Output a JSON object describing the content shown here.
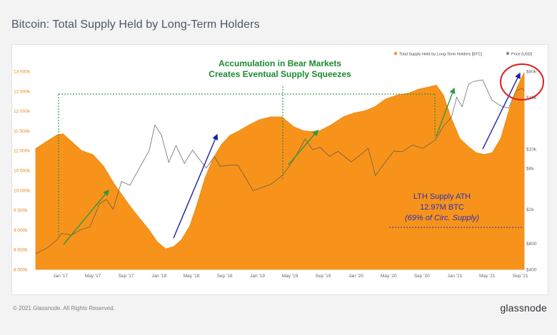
{
  "title": "Bitcoin: Total Supply Held by Long-Term Holders",
  "footer": {
    "copyright": "© 2021 Glassnode. All Rights Reserved.",
    "logo": "glassnode"
  },
  "chart_data": {
    "type": "area",
    "watermark": "glassnode",
    "legend": {
      "placement": "top-right",
      "items": [
        {
          "label": "Total Supply Held by Long-Term Holders [BTC]",
          "color": "#f7931a"
        },
        {
          "label": "Price [USD]",
          "color": "#8a8a8a"
        }
      ]
    },
    "x_ticks": [
      "Jan '17",
      "May '17",
      "Sep '17",
      "Jan '18",
      "May '18",
      "Sep '18",
      "Jan '19",
      "May '19",
      "Sep '19",
      "Jan '20",
      "May '20",
      "Sep '20",
      "Jan '21",
      "May '21",
      "Sep '21"
    ],
    "y_left": {
      "min": 8000000,
      "max": 13000000,
      "ticks": [
        {
          "v": 13000000,
          "label": "13 000k"
        },
        {
          "v": 12500000,
          "label": "12 500k"
        },
        {
          "v": 12000000,
          "label": "12 000k"
        },
        {
          "v": 11500000,
          "label": "11 500k"
        },
        {
          "v": 11000000,
          "label": "11 000k"
        },
        {
          "v": 10500000,
          "label": "10 500k"
        },
        {
          "v": 10000000,
          "label": "10 000k"
        },
        {
          "v": 9500000,
          "label": "9 500k"
        },
        {
          "v": 9000000,
          "label": "9 000k"
        },
        {
          "v": 8500000,
          "label": "8 500k"
        },
        {
          "v": 8000000,
          "label": "8 000k"
        }
      ]
    },
    "y_right": {
      "scale": "log",
      "min": 400,
      "max": 80000,
      "ticks": [
        {
          "v": 80000,
          "label": "$80k"
        },
        {
          "v": 40000,
          "label": "$40k"
        },
        {
          "v": 10000,
          "label": "$10k"
        },
        {
          "v": 6000,
          "label": "$6k"
        },
        {
          "v": 2000,
          "label": "$2k"
        },
        {
          "v": 800,
          "label": "$800"
        },
        {
          "v": 400,
          "label": "$400"
        }
      ]
    },
    "series": [
      {
        "name": "Total Supply Held by Long-Term Holders [BTC]",
        "color": "#f7931a",
        "points": [
          [
            "2016-10-01",
            11050000
          ],
          [
            "2016-11-15",
            11250000
          ],
          [
            "2016-12-20",
            11400000
          ],
          [
            "2017-01-10",
            11420000
          ],
          [
            "2017-02-15",
            11200000
          ],
          [
            "2017-03-20",
            11000000
          ],
          [
            "2017-05-01",
            10900000
          ],
          [
            "2017-06-10",
            10600000
          ],
          [
            "2017-07-15",
            10200000
          ],
          [
            "2017-08-15",
            9900000
          ],
          [
            "2017-09-15",
            9600000
          ],
          [
            "2017-10-20",
            9300000
          ],
          [
            "2017-11-25",
            9000000
          ],
          [
            "2017-12-25",
            8700000
          ],
          [
            "2018-01-25",
            8520000
          ],
          [
            "2018-02-25",
            8580000
          ],
          [
            "2018-03-25",
            8750000
          ],
          [
            "2018-04-25",
            9100000
          ],
          [
            "2018-05-20",
            9600000
          ],
          [
            "2018-06-20",
            10300000
          ],
          [
            "2018-07-20",
            10800000
          ],
          [
            "2018-08-20",
            11150000
          ],
          [
            "2018-09-20",
            11380000
          ],
          [
            "2018-10-25",
            11500000
          ],
          [
            "2018-12-01",
            11650000
          ],
          [
            "2019-01-10",
            11780000
          ],
          [
            "2019-02-20",
            11850000
          ],
          [
            "2019-04-01",
            11850000
          ],
          [
            "2019-05-15",
            11600000
          ],
          [
            "2019-06-20",
            11500000
          ],
          [
            "2019-07-20",
            11480000
          ],
          [
            "2019-08-20",
            11500000
          ],
          [
            "2019-10-01",
            11650000
          ],
          [
            "2019-11-15",
            11850000
          ],
          [
            "2019-12-25",
            11950000
          ],
          [
            "2020-02-01",
            12000000
          ],
          [
            "2020-03-10",
            12100000
          ],
          [
            "2020-04-20",
            12300000
          ],
          [
            "2020-06-01",
            12400000
          ],
          [
            "2020-07-15",
            12450000
          ],
          [
            "2020-08-20",
            12550000
          ],
          [
            "2020-09-25",
            12600000
          ],
          [
            "2020-10-25",
            12650000
          ],
          [
            "2020-11-20",
            12400000
          ],
          [
            "2020-12-20",
            11800000
          ],
          [
            "2021-01-20",
            11300000
          ],
          [
            "2021-02-20",
            11100000
          ],
          [
            "2021-03-20",
            10950000
          ],
          [
            "2021-04-20",
            10900000
          ],
          [
            "2021-05-20",
            10950000
          ],
          [
            "2021-06-20",
            11300000
          ],
          [
            "2021-07-20",
            12000000
          ],
          [
            "2021-08-20",
            12600000
          ],
          [
            "2021-09-15",
            12970000
          ]
        ]
      },
      {
        "name": "Price [USD]",
        "color": "#8a8a8a",
        "points": [
          [
            "2016-10-01",
            610
          ],
          [
            "2016-11-15",
            720
          ],
          [
            "2016-12-20",
            890
          ],
          [
            "2017-01-05",
            1050
          ],
          [
            "2017-02-10",
            1000
          ],
          [
            "2017-03-15",
            1150
          ],
          [
            "2017-04-20",
            1250
          ],
          [
            "2017-05-25",
            2300
          ],
          [
            "2017-06-20",
            2600
          ],
          [
            "2017-07-15",
            2000
          ],
          [
            "2017-08-15",
            4200
          ],
          [
            "2017-09-15",
            3800
          ],
          [
            "2017-10-20",
            6000
          ],
          [
            "2017-11-25",
            9500
          ],
          [
            "2017-12-17",
            19000
          ],
          [
            "2018-01-10",
            14500
          ],
          [
            "2018-02-06",
            7000
          ],
          [
            "2018-03-05",
            11000
          ],
          [
            "2018-04-05",
            6800
          ],
          [
            "2018-05-05",
            9700
          ],
          [
            "2018-06-25",
            6000
          ],
          [
            "2018-07-25",
            8200
          ],
          [
            "2018-08-15",
            6300
          ],
          [
            "2018-09-20",
            6500
          ],
          [
            "2018-10-20",
            6500
          ],
          [
            "2018-11-20",
            4500
          ],
          [
            "2018-12-15",
            3300
          ],
          [
            "2019-01-20",
            3600
          ],
          [
            "2019-02-20",
            3900
          ],
          [
            "2019-04-05",
            5000
          ],
          [
            "2019-05-20",
            8000
          ],
          [
            "2019-06-26",
            13000
          ],
          [
            "2019-07-25",
            9800
          ],
          [
            "2019-08-20",
            10500
          ],
          [
            "2019-09-25",
            8200
          ],
          [
            "2019-10-26",
            9400
          ],
          [
            "2019-12-15",
            7100
          ],
          [
            "2020-01-20",
            8700
          ],
          [
            "2020-02-15",
            10200
          ],
          [
            "2020-03-13",
            4900
          ],
          [
            "2020-04-15",
            6800
          ],
          [
            "2020-05-20",
            9500
          ],
          [
            "2020-06-20",
            9300
          ],
          [
            "2020-07-28",
            11100
          ],
          [
            "2020-09-05",
            10200
          ],
          [
            "2020-10-21",
            12800
          ],
          [
            "2020-11-20",
            18500
          ],
          [
            "2020-12-20",
            23500
          ],
          [
            "2021-01-08",
            40000
          ],
          [
            "2021-01-28",
            31000
          ],
          [
            "2021-02-21",
            57000
          ],
          [
            "2021-03-13",
            61000
          ],
          [
            "2021-04-14",
            63500
          ],
          [
            "2021-05-19",
            37000
          ],
          [
            "2021-06-22",
            31500
          ],
          [
            "2021-07-20",
            30000
          ],
          [
            "2021-08-15",
            47000
          ],
          [
            "2021-09-07",
            51000
          ],
          [
            "2021-09-15",
            47500
          ]
        ]
      }
    ],
    "annotations": {
      "headline_line1": "Accumulation in Bear Markets",
      "headline_line2": "Creates Eventual Supply Squeezes",
      "ath_title": "LTH Supply ATH",
      "ath_value": "12.97M BTC",
      "ath_note": "(69% of Circ. Supply)",
      "headline_color": "#1a8a2e",
      "ath_color": "#2b2fb8",
      "green_arrow_color": "#2e9a3e",
      "blue_arrow_color": "#1d1fa0",
      "circle_color": "#d9201f"
    }
  }
}
